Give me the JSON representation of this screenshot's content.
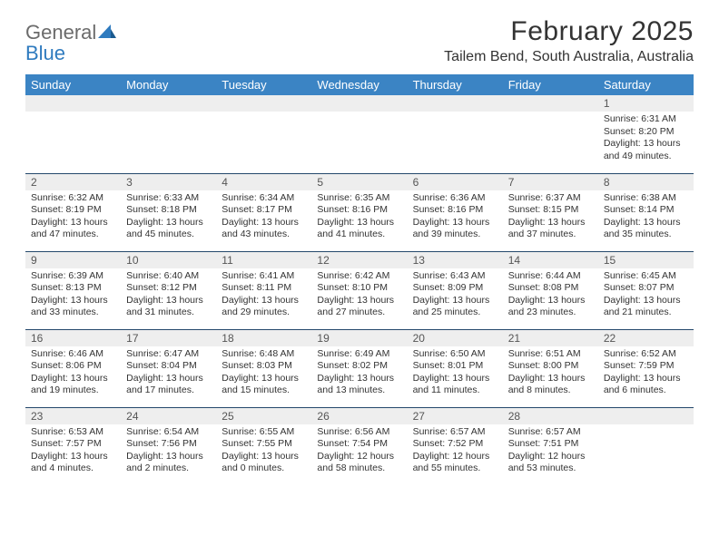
{
  "brand": {
    "line1": "General",
    "line2": "Blue",
    "icon_color": "#2f7bbf",
    "text_gray": "#6b6b6b"
  },
  "title": "February 2025",
  "location": "Tailem Bend, South Australia, Australia",
  "header_bg": "#3b84c4",
  "header_fg": "#ffffff",
  "row_divider_color": "#24486b",
  "daynum_bg": "#eeeeee",
  "weekdays": [
    "Sunday",
    "Monday",
    "Tuesday",
    "Wednesday",
    "Thursday",
    "Friday",
    "Saturday"
  ],
  "weeks": [
    [
      {
        "day": "",
        "sunrise": "",
        "sunset": "",
        "daylight1": "",
        "daylight2": "",
        "empty": true
      },
      {
        "day": "",
        "sunrise": "",
        "sunset": "",
        "daylight1": "",
        "daylight2": "",
        "empty": true
      },
      {
        "day": "",
        "sunrise": "",
        "sunset": "",
        "daylight1": "",
        "daylight2": "",
        "empty": true
      },
      {
        "day": "",
        "sunrise": "",
        "sunset": "",
        "daylight1": "",
        "daylight2": "",
        "empty": true
      },
      {
        "day": "",
        "sunrise": "",
        "sunset": "",
        "daylight1": "",
        "daylight2": "",
        "empty": true
      },
      {
        "day": "",
        "sunrise": "",
        "sunset": "",
        "daylight1": "",
        "daylight2": "",
        "empty": true
      },
      {
        "day": "1",
        "sunrise": "Sunrise: 6:31 AM",
        "sunset": "Sunset: 8:20 PM",
        "daylight1": "Daylight: 13 hours",
        "daylight2": "and 49 minutes."
      }
    ],
    [
      {
        "day": "2",
        "sunrise": "Sunrise: 6:32 AM",
        "sunset": "Sunset: 8:19 PM",
        "daylight1": "Daylight: 13 hours",
        "daylight2": "and 47 minutes."
      },
      {
        "day": "3",
        "sunrise": "Sunrise: 6:33 AM",
        "sunset": "Sunset: 8:18 PM",
        "daylight1": "Daylight: 13 hours",
        "daylight2": "and 45 minutes."
      },
      {
        "day": "4",
        "sunrise": "Sunrise: 6:34 AM",
        "sunset": "Sunset: 8:17 PM",
        "daylight1": "Daylight: 13 hours",
        "daylight2": "and 43 minutes."
      },
      {
        "day": "5",
        "sunrise": "Sunrise: 6:35 AM",
        "sunset": "Sunset: 8:16 PM",
        "daylight1": "Daylight: 13 hours",
        "daylight2": "and 41 minutes."
      },
      {
        "day": "6",
        "sunrise": "Sunrise: 6:36 AM",
        "sunset": "Sunset: 8:16 PM",
        "daylight1": "Daylight: 13 hours",
        "daylight2": "and 39 minutes."
      },
      {
        "day": "7",
        "sunrise": "Sunrise: 6:37 AM",
        "sunset": "Sunset: 8:15 PM",
        "daylight1": "Daylight: 13 hours",
        "daylight2": "and 37 minutes."
      },
      {
        "day": "8",
        "sunrise": "Sunrise: 6:38 AM",
        "sunset": "Sunset: 8:14 PM",
        "daylight1": "Daylight: 13 hours",
        "daylight2": "and 35 minutes."
      }
    ],
    [
      {
        "day": "9",
        "sunrise": "Sunrise: 6:39 AM",
        "sunset": "Sunset: 8:13 PM",
        "daylight1": "Daylight: 13 hours",
        "daylight2": "and 33 minutes."
      },
      {
        "day": "10",
        "sunrise": "Sunrise: 6:40 AM",
        "sunset": "Sunset: 8:12 PM",
        "daylight1": "Daylight: 13 hours",
        "daylight2": "and 31 minutes."
      },
      {
        "day": "11",
        "sunrise": "Sunrise: 6:41 AM",
        "sunset": "Sunset: 8:11 PM",
        "daylight1": "Daylight: 13 hours",
        "daylight2": "and 29 minutes."
      },
      {
        "day": "12",
        "sunrise": "Sunrise: 6:42 AM",
        "sunset": "Sunset: 8:10 PM",
        "daylight1": "Daylight: 13 hours",
        "daylight2": "and 27 minutes."
      },
      {
        "day": "13",
        "sunrise": "Sunrise: 6:43 AM",
        "sunset": "Sunset: 8:09 PM",
        "daylight1": "Daylight: 13 hours",
        "daylight2": "and 25 minutes."
      },
      {
        "day": "14",
        "sunrise": "Sunrise: 6:44 AM",
        "sunset": "Sunset: 8:08 PM",
        "daylight1": "Daylight: 13 hours",
        "daylight2": "and 23 minutes."
      },
      {
        "day": "15",
        "sunrise": "Sunrise: 6:45 AM",
        "sunset": "Sunset: 8:07 PM",
        "daylight1": "Daylight: 13 hours",
        "daylight2": "and 21 minutes."
      }
    ],
    [
      {
        "day": "16",
        "sunrise": "Sunrise: 6:46 AM",
        "sunset": "Sunset: 8:06 PM",
        "daylight1": "Daylight: 13 hours",
        "daylight2": "and 19 minutes."
      },
      {
        "day": "17",
        "sunrise": "Sunrise: 6:47 AM",
        "sunset": "Sunset: 8:04 PM",
        "daylight1": "Daylight: 13 hours",
        "daylight2": "and 17 minutes."
      },
      {
        "day": "18",
        "sunrise": "Sunrise: 6:48 AM",
        "sunset": "Sunset: 8:03 PM",
        "daylight1": "Daylight: 13 hours",
        "daylight2": "and 15 minutes."
      },
      {
        "day": "19",
        "sunrise": "Sunrise: 6:49 AM",
        "sunset": "Sunset: 8:02 PM",
        "daylight1": "Daylight: 13 hours",
        "daylight2": "and 13 minutes."
      },
      {
        "day": "20",
        "sunrise": "Sunrise: 6:50 AM",
        "sunset": "Sunset: 8:01 PM",
        "daylight1": "Daylight: 13 hours",
        "daylight2": "and 11 minutes."
      },
      {
        "day": "21",
        "sunrise": "Sunrise: 6:51 AM",
        "sunset": "Sunset: 8:00 PM",
        "daylight1": "Daylight: 13 hours",
        "daylight2": "and 8 minutes."
      },
      {
        "day": "22",
        "sunrise": "Sunrise: 6:52 AM",
        "sunset": "Sunset: 7:59 PM",
        "daylight1": "Daylight: 13 hours",
        "daylight2": "and 6 minutes."
      }
    ],
    [
      {
        "day": "23",
        "sunrise": "Sunrise: 6:53 AM",
        "sunset": "Sunset: 7:57 PM",
        "daylight1": "Daylight: 13 hours",
        "daylight2": "and 4 minutes."
      },
      {
        "day": "24",
        "sunrise": "Sunrise: 6:54 AM",
        "sunset": "Sunset: 7:56 PM",
        "daylight1": "Daylight: 13 hours",
        "daylight2": "and 2 minutes."
      },
      {
        "day": "25",
        "sunrise": "Sunrise: 6:55 AM",
        "sunset": "Sunset: 7:55 PM",
        "daylight1": "Daylight: 13 hours",
        "daylight2": "and 0 minutes."
      },
      {
        "day": "26",
        "sunrise": "Sunrise: 6:56 AM",
        "sunset": "Sunset: 7:54 PM",
        "daylight1": "Daylight: 12 hours",
        "daylight2": "and 58 minutes."
      },
      {
        "day": "27",
        "sunrise": "Sunrise: 6:57 AM",
        "sunset": "Sunset: 7:52 PM",
        "daylight1": "Daylight: 12 hours",
        "daylight2": "and 55 minutes."
      },
      {
        "day": "28",
        "sunrise": "Sunrise: 6:57 AM",
        "sunset": "Sunset: 7:51 PM",
        "daylight1": "Daylight: 12 hours",
        "daylight2": "and 53 minutes."
      },
      {
        "day": "",
        "sunrise": "",
        "sunset": "",
        "daylight1": "",
        "daylight2": "",
        "empty": true
      }
    ]
  ]
}
